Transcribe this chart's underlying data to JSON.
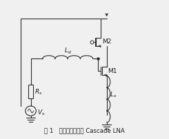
{
  "title": "图 1   源极电感负反馈 Cascade LNA",
  "bg_color": "#f0f0f0",
  "line_color": "#2a2a2a",
  "text_color": "#1a1a1a",
  "font_size_label": 6.5,
  "font_size_caption": 6.2,
  "fig_width": 2.45,
  "fig_height": 2.02,
  "dpi": 100
}
